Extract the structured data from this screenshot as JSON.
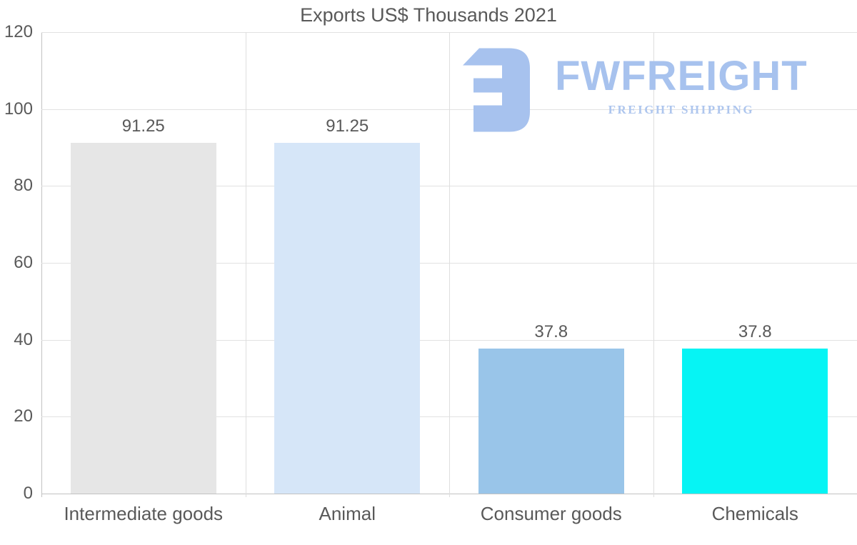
{
  "chart_data": {
    "type": "bar",
    "title": "Exports US$ Thousands 2021",
    "categories": [
      "Intermediate goods",
      "Animal",
      "Consumer goods",
      "Chemicals"
    ],
    "values": [
      91.25,
      91.25,
      37.8,
      37.8
    ],
    "value_labels": [
      "91.25",
      "91.25",
      "37.8",
      "37.8"
    ],
    "bar_colors": [
      "#e6e6e6",
      "#d6e6f8",
      "#99c5e9",
      "#06f4f4"
    ],
    "xlabel": "",
    "ylabel": "",
    "ylim": [
      0,
      120
    ],
    "yticks": [
      0,
      20,
      40,
      60,
      80,
      100,
      120
    ],
    "grid": true,
    "legend": "none",
    "text_color": "#595959",
    "gridline_color": "#e2e2e2",
    "axis_color": "#c2c2c2"
  },
  "watermark": {
    "brand": "FWFREIGHT",
    "tagline": "FREIGHT SHIPPING",
    "icon": "fwfreight-logo-icon",
    "color": "#a7c2ee",
    "tagline_color": "#aec6ee"
  }
}
